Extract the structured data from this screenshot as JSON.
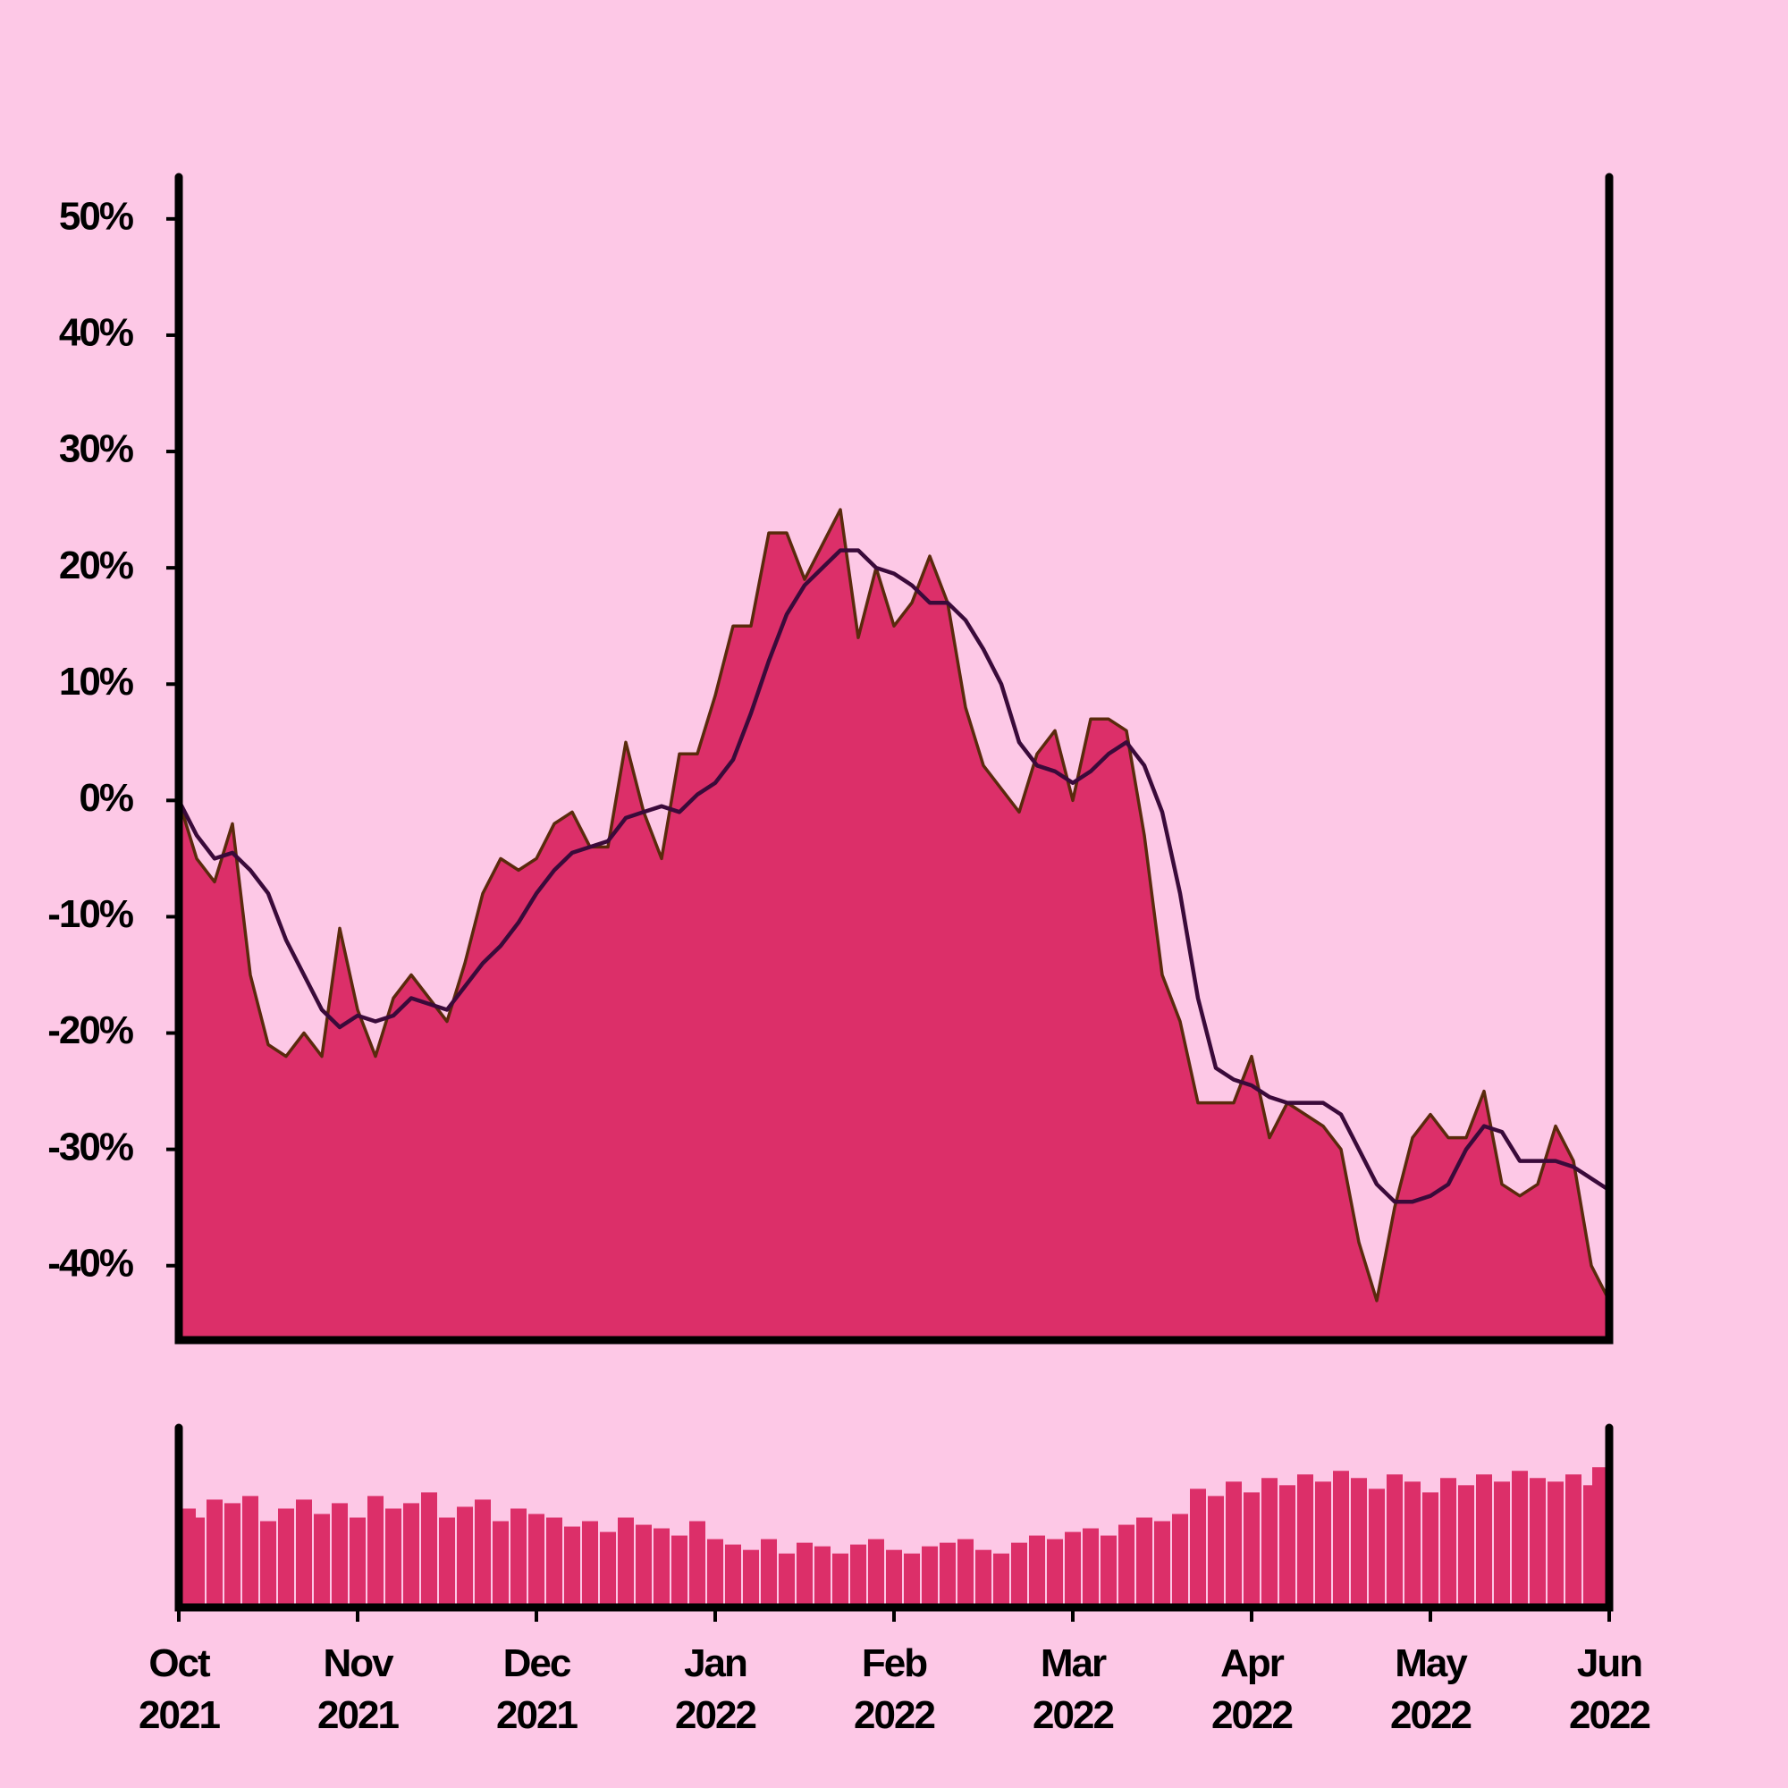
{
  "chart_data": [
    {
      "type": "area",
      "x": [
        0,
        0.1,
        0.2,
        0.3,
        0.4,
        0.5,
        0.6,
        0.7,
        0.8,
        0.9,
        1,
        1.1,
        1.2,
        1.3,
        1.4,
        1.5,
        1.6,
        1.7,
        1.8,
        1.9,
        2,
        2.1,
        2.2,
        2.3,
        2.4,
        2.5,
        2.6,
        2.7,
        2.8,
        2.9,
        3,
        3.1,
        3.2,
        3.3,
        3.4,
        3.5,
        3.6,
        3.7,
        3.8,
        3.9,
        4,
        4.1,
        4.2,
        4.3,
        4.4,
        4.5,
        4.6,
        4.7,
        4.8,
        4.9,
        5,
        5.1,
        5.2,
        5.3,
        5.4,
        5.5,
        5.6,
        5.7,
        5.8,
        5.9,
        6,
        6.1,
        6.2,
        6.3,
        6.4,
        6.5,
        6.6,
        6.7,
        6.8,
        6.9,
        7,
        7.1,
        7.2,
        7.3,
        7.4,
        7.5,
        7.6,
        7.7,
        7.8,
        7.9,
        8
      ],
      "series": [
        {
          "type": "area",
          "color": "#dc2f69",
          "line_color": "#5a2a0c",
          "values": [
            0,
            -5,
            -7,
            -2,
            -15,
            -21,
            -22,
            -20,
            -22,
            -11,
            -18,
            -22,
            -17,
            -15,
            -17,
            -19,
            -14,
            -8,
            -5,
            -6,
            -5,
            -2,
            -1,
            -4,
            -4,
            5,
            -1,
            -5,
            4,
            4,
            9,
            15,
            15,
            23,
            23,
            19,
            22,
            25,
            14,
            20,
            15,
            17,
            21,
            17,
            8,
            3,
            1,
            -1,
            4,
            6,
            0,
            7,
            7,
            6,
            -3,
            -15,
            -19,
            -26,
            -26,
            -26,
            -22,
            -29,
            -26,
            -27,
            -28,
            -30,
            -38,
            -43,
            -35,
            -29,
            -27,
            -29,
            -29,
            -25,
            -33,
            -34,
            -33,
            -28,
            -31,
            -40,
            -43
          ]
        },
        {
          "type": "line",
          "color": "#3a0a3a",
          "values": [
            0,
            -3,
            -5,
            -4.5,
            -6,
            -8,
            -12,
            -15,
            -18,
            -19.5,
            -18.5,
            -19,
            -18.5,
            -17,
            -17.5,
            -18,
            -16,
            -14,
            -12.5,
            -10.5,
            -8,
            -6,
            -4.5,
            -4,
            -3.5,
            -1.5,
            -1,
            -0.5,
            -1,
            0.5,
            1.5,
            3.5,
            7.5,
            12,
            16,
            18.5,
            20,
            21.5,
            21.5,
            20,
            19.5,
            18.5,
            17,
            17,
            15.5,
            13,
            10,
            5,
            3,
            2.5,
            1.5,
            2.5,
            4,
            5,
            3,
            -1,
            -8,
            -17,
            -23,
            -24,
            -24.5,
            -25.5,
            -26,
            -26,
            -26,
            -27,
            -30,
            -33,
            -34.5,
            -34.5,
            -34,
            -33,
            -30,
            -28,
            -28.5,
            -31,
            -31,
            -31,
            -31.5,
            -32.5,
            -33.5
          ]
        }
      ],
      "xlim": [
        0,
        8
      ],
      "ylim": [
        -46.4,
        53.6
      ],
      "yticks": [
        {
          "value": -40,
          "label": "-40%"
        },
        {
          "value": -30,
          "label": "-30%"
        },
        {
          "value": -20,
          "label": "-20%"
        },
        {
          "value": -10,
          "label": "-10%"
        },
        {
          "value": 0,
          "label": "0%"
        },
        {
          "value": 10,
          "label": "10%"
        },
        {
          "value": 20,
          "label": "20%"
        },
        {
          "value": 30,
          "label": "30%"
        },
        {
          "value": 40,
          "label": "40%"
        },
        {
          "value": 50,
          "label": "50%"
        }
      ]
    },
    {
      "type": "bar",
      "color": "#dc2f69",
      "x": [
        0,
        0.1,
        0.2,
        0.3,
        0.4,
        0.5,
        0.6,
        0.7,
        0.8,
        0.9,
        1,
        1.1,
        1.2,
        1.3,
        1.4,
        1.5,
        1.6,
        1.7,
        1.8,
        1.9,
        2,
        2.1,
        2.2,
        2.3,
        2.4,
        2.5,
        2.6,
        2.7,
        2.8,
        2.9,
        3,
        3.1,
        3.2,
        3.3,
        3.4,
        3.5,
        3.6,
        3.7,
        3.8,
        3.9,
        4,
        4.1,
        4.2,
        4.3,
        4.4,
        4.5,
        4.6,
        4.7,
        4.8,
        4.9,
        5,
        5.1,
        5.2,
        5.3,
        5.4,
        5.5,
        5.6,
        5.7,
        5.8,
        5.9,
        6,
        6.1,
        6.2,
        6.3,
        6.4,
        6.5,
        6.6,
        6.7,
        6.8,
        6.9,
        7,
        7.1,
        7.2,
        7.3,
        7.4,
        7.5,
        7.6,
        7.7,
        7.8,
        7.9,
        8
      ],
      "values": [
        55,
        50,
        60,
        58,
        62,
        48,
        55,
        60,
        52,
        58,
        50,
        62,
        55,
        58,
        64,
        50,
        56,
        60,
        48,
        55,
        52,
        50,
        45,
        48,
        42,
        50,
        46,
        44,
        40,
        48,
        38,
        35,
        32,
        38,
        30,
        36,
        34,
        30,
        35,
        38,
        32,
        30,
        34,
        36,
        38,
        32,
        30,
        36,
        40,
        38,
        42,
        44,
        40,
        46,
        50,
        48,
        52,
        66,
        62,
        70,
        64,
        72,
        68,
        74,
        70,
        76,
        72,
        66,
        74,
        70,
        64,
        72,
        68,
        74,
        70,
        76,
        72,
        70,
        74,
        68,
        78
      ],
      "xlim": [
        0,
        8
      ],
      "ylim": [
        0,
        100
      ],
      "xticks": [
        {
          "value": 0,
          "label": "Oct\n2021"
        },
        {
          "value": 1,
          "label": "Nov\n2021"
        },
        {
          "value": 2,
          "label": "Dec\n2021"
        },
        {
          "value": 3,
          "label": "Jan\n2022"
        },
        {
          "value": 4,
          "label": "Feb\n2022"
        },
        {
          "value": 5,
          "label": "Mar\n2022"
        },
        {
          "value": 6,
          "label": "Apr\n2022"
        },
        {
          "value": 7,
          "label": "May\n2022"
        },
        {
          "value": 8,
          "label": "Jun\n2022"
        }
      ]
    }
  ]
}
